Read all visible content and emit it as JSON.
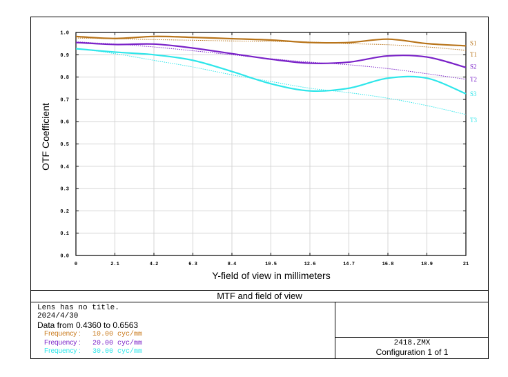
{
  "chart_data": {
    "type": "line",
    "title": "MTF and field of view",
    "xlabel": "Y-field of view in millimeters",
    "ylabel": "OTF Coefficient",
    "xlim": [
      0,
      21
    ],
    "ylim": [
      0,
      1.0
    ],
    "x_ticks": [
      "0",
      "2.1",
      "4.2",
      "6.3",
      "8.4",
      "10.5",
      "12.6",
      "14.7",
      "16.8",
      "18.9",
      "21"
    ],
    "y_ticks": [
      "0.0",
      "0.1",
      "0.2",
      "0.3",
      "0.4",
      "0.5",
      "0.6",
      "0.7",
      "0.8",
      "0.9",
      "1.0"
    ],
    "grid": true,
    "series": [
      {
        "name": "S1",
        "color": "#b8741a",
        "style": "solid",
        "x": [
          0,
          2.1,
          4.2,
          6.3,
          8.4,
          10.5,
          12.6,
          14.7,
          16.8,
          18.9,
          21
        ],
        "y": [
          0.982,
          0.973,
          0.982,
          0.978,
          0.972,
          0.966,
          0.955,
          0.955,
          0.97,
          0.95,
          0.94
        ]
      },
      {
        "name": "T1",
        "color": "#b8741a",
        "style": "dotted",
        "x": [
          0,
          2.1,
          4.2,
          6.3,
          8.4,
          10.5,
          12.6,
          14.7,
          16.8,
          18.9,
          21
        ],
        "y": [
          0.975,
          0.972,
          0.968,
          0.965,
          0.962,
          0.96,
          0.957,
          0.95,
          0.945,
          0.935,
          0.92
        ]
      },
      {
        "name": "S2",
        "color": "#7a22c8",
        "style": "solid",
        "x": [
          0,
          2.1,
          4.2,
          6.3,
          8.4,
          10.5,
          12.6,
          14.7,
          16.8,
          18.9,
          21
        ],
        "y": [
          0.955,
          0.946,
          0.948,
          0.93,
          0.905,
          0.88,
          0.862,
          0.867,
          0.895,
          0.89,
          0.843
        ]
      },
      {
        "name": "T2",
        "color": "#7a22c8",
        "style": "dotted",
        "x": [
          0,
          2.1,
          4.2,
          6.3,
          8.4,
          10.5,
          12.6,
          14.7,
          16.8,
          18.9,
          21
        ],
        "y": [
          0.958,
          0.948,
          0.935,
          0.918,
          0.9,
          0.882,
          0.867,
          0.855,
          0.838,
          0.815,
          0.79
        ]
      },
      {
        "name": "S3",
        "color": "#2ee6ea",
        "style": "solid",
        "x": [
          0,
          2.1,
          4.2,
          6.3,
          8.4,
          10.5,
          12.6,
          14.7,
          16.8,
          18.9,
          21
        ],
        "y": [
          0.927,
          0.912,
          0.9,
          0.875,
          0.825,
          0.77,
          0.738,
          0.75,
          0.795,
          0.795,
          0.725
        ]
      },
      {
        "name": "T3",
        "color": "#2ee6ea",
        "style": "dotted",
        "x": [
          0,
          2.1,
          4.2,
          6.3,
          8.4,
          10.5,
          12.6,
          14.7,
          16.8,
          18.9,
          21
        ],
        "y": [
          0.928,
          0.905,
          0.875,
          0.845,
          0.81,
          0.78,
          0.75,
          0.73,
          0.705,
          0.672,
          0.632
        ]
      }
    ]
  },
  "info": {
    "line1": "Lens has no title.",
    "line2": "2024/4/30",
    "line3": "Data from 0.4360 to 0.6563",
    "frequencies": [
      {
        "label": "Frequency :",
        "value": "10.00 cyc/mm",
        "color": "#c8781a"
      },
      {
        "label": "Frequency :",
        "value": "20.00 cyc/mm",
        "color": "#7a22c8"
      },
      {
        "label": "Frequency :",
        "value": "30.00 cyc/mm",
        "color": "#2ee6ea"
      }
    ],
    "file_name": "2418.ZMX",
    "configuration": "Configuration 1 of 1"
  }
}
